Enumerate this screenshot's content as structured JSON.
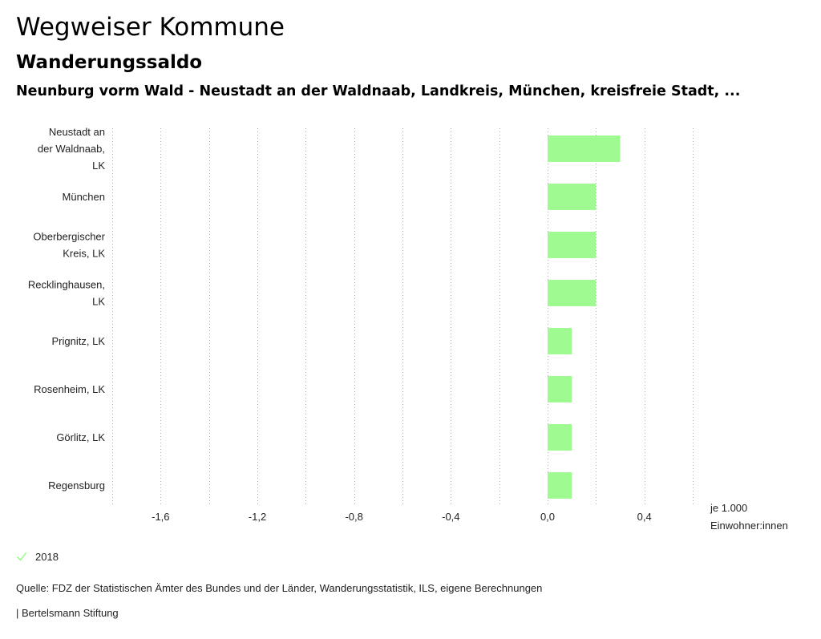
{
  "header": {
    "title": "Wegweiser Kommune",
    "subtitle": "Wanderungssaldo",
    "chart_heading": "Neunburg vorm Wald - Neustadt an der Waldnaab, Landkreis, München, kreisfreie Stadt, ..."
  },
  "colors": {
    "bar": "#9efa91",
    "grid": "#aaaaaa"
  },
  "chart_data": {
    "type": "bar",
    "orientation": "horizontal",
    "title": "Neunburg vorm Wald - Neustadt an der Waldnaab, Landkreis, München, kreisfreie Stadt, ...",
    "categories": [
      [
        "Neustadt an",
        "der Waldnaab,",
        "LK"
      ],
      [
        "München"
      ],
      [
        "Oberbergischer",
        "Kreis, LK"
      ],
      [
        "Recklinghausen,",
        "LK"
      ],
      [
        "Prignitz, LK"
      ],
      [
        "Rosenheim, LK"
      ],
      [
        "Görlitz, LK"
      ],
      [
        "Regensburg"
      ]
    ],
    "series": [
      {
        "name": "2018",
        "values": [
          0.3,
          0.2,
          0.2,
          0.2,
          0.1,
          0.1,
          0.1,
          0.1
        ]
      }
    ],
    "xlim": [
      -1.8,
      0.6
    ],
    "ticks": [
      -1.6,
      -1.2,
      -0.8,
      -0.4,
      0.0,
      0.4
    ],
    "tick_labels": [
      "-1,6",
      "-1,2",
      "-0,8",
      "-0,4",
      "0,0",
      "0,4"
    ],
    "grid_lines": [
      -1.8,
      -1.6,
      -1.4,
      -1.2,
      -1.0,
      -0.8,
      -0.6,
      -0.4,
      -0.2,
      0.0,
      0.2,
      0.4,
      0.6
    ],
    "unit_label": [
      "je 1.000",
      "Einwohner:innen"
    ],
    "legend_position": "bottom-left"
  },
  "legend": {
    "label": "2018"
  },
  "footer": {
    "source": "Quelle: FDZ der Statistischen Ämter des Bundes und der Länder, Wanderungsstatistik, ILS, eigene Berechnungen",
    "publisher": "| Bertelsmann Stiftung"
  }
}
